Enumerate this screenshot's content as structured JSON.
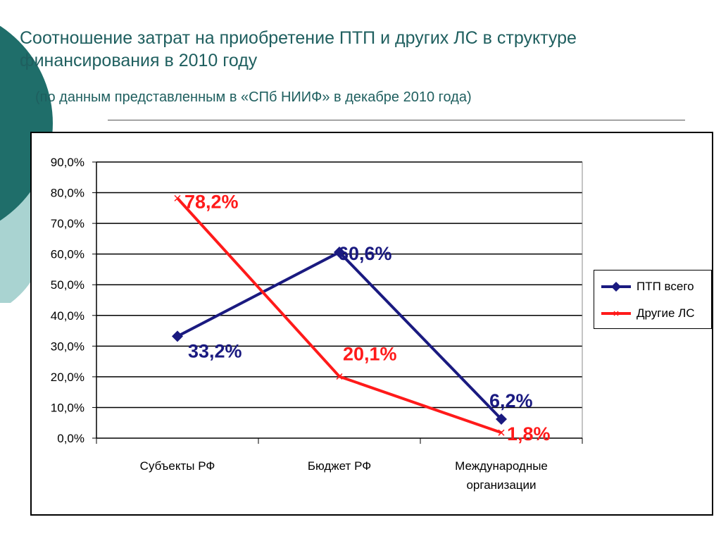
{
  "header": {
    "title": "Соотношение затрат на приобретение ПТП и других ЛС в структуре финансирования в 2010 году",
    "subtitle": "(по данным представленным в «СПб НИИФ» в декабре 2010 года)"
  },
  "colors": {
    "series_ptp": "#1a1a80",
    "series_other": "#ff1a1a",
    "title_text": "#1f5f5f",
    "deco_dark": "#1f6e6a",
    "deco_light": "#a9d3d1"
  },
  "chart_data": {
    "type": "line",
    "categories": [
      "Субъекты РФ",
      "Бюджет РФ",
      "Международные организации"
    ],
    "series": [
      {
        "name": "ПТП всего",
        "values": [
          33.2,
          60.6,
          6.2
        ],
        "labels": [
          "33,2%",
          "60,6%",
          "6,2%"
        ],
        "color": "#1a1a80",
        "marker": "diamond"
      },
      {
        "name": "Другие ЛС",
        "values": [
          78.2,
          20.1,
          1.8
        ],
        "labels": [
          "78,2%",
          "20,1%",
          "1,8%"
        ],
        "color": "#ff1a1a",
        "marker": "x"
      }
    ],
    "yticks": [
      "0,0%",
      "10,0%",
      "20,0%",
      "30,0%",
      "40,0%",
      "50,0%",
      "60,0%",
      "70,0%",
      "80,0%",
      "90,0%"
    ],
    "ylim": [
      0,
      90
    ],
    "grid": true,
    "legend_position": "right"
  }
}
